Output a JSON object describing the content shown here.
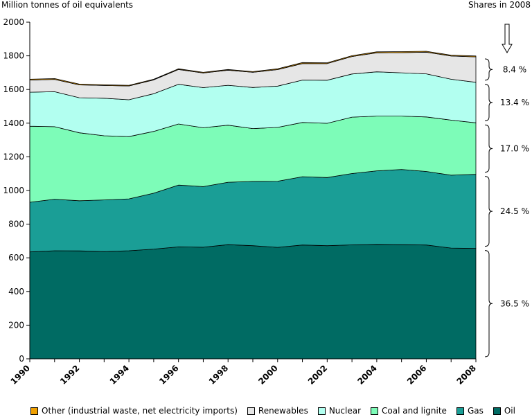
{
  "chart_data": {
    "type": "area",
    "stacked": true,
    "ylabel": "Million tonnes of oil equivalents",
    "right_title": "Shares in 2008",
    "ylim": [
      0,
      2000
    ],
    "yticks": [
      0,
      200,
      400,
      600,
      800,
      1000,
      1200,
      1400,
      1600,
      1800,
      2000
    ],
    "x": [
      1990,
      1991,
      1992,
      1993,
      1994,
      1995,
      1996,
      1997,
      1998,
      1999,
      2000,
      2001,
      2002,
      2003,
      2004,
      2005,
      2006,
      2007,
      2008
    ],
    "xticks": [
      "1990",
      "1992",
      "1994",
      "1996",
      "1998",
      "2000",
      "2002",
      "2004",
      "2006",
      "2008"
    ],
    "series": [
      {
        "name": "Oil",
        "color": "#006b63",
        "values": [
          635,
          642,
          641,
          637,
          642,
          652,
          665,
          663,
          678,
          672,
          662,
          676,
          672,
          677,
          680,
          678,
          676,
          658,
          656
        ]
      },
      {
        "name": "Gas",
        "color": "#1a9e96",
        "values": [
          295,
          306,
          298,
          307,
          308,
          332,
          367,
          360,
          371,
          382,
          393,
          406,
          405,
          424,
          437,
          447,
          437,
          433,
          440
        ]
      },
      {
        "name": "Coal and lignite",
        "color": "#7dfcb8",
        "values": [
          452,
          431,
          404,
          381,
          370,
          367,
          363,
          350,
          339,
          314,
          320,
          322,
          322,
          335,
          325,
          317,
          324,
          327,
          306
        ]
      },
      {
        "name": "Nuclear",
        "color": "#b2fff0",
        "values": [
          202,
          208,
          208,
          223,
          219,
          224,
          236,
          238,
          237,
          244,
          245,
          252,
          256,
          256,
          263,
          257,
          256,
          243,
          241
        ]
      },
      {
        "name": "Renewables",
        "color": "#e6e6e6",
        "values": [
          72,
          73,
          76,
          76,
          82,
          82,
          88,
          87,
          90,
          90,
          98,
          98,
          99,
          104,
          113,
          120,
          129,
          138,
          151
        ]
      },
      {
        "name": "Other (industrial waste, net electricity imports)",
        "color": "#f0a000",
        "values": [
          5,
          5,
          5,
          4,
          4,
          4,
          4,
          4,
          4,
          4,
          5,
          6,
          5,
          5,
          6,
          6,
          5,
          5,
          5
        ]
      }
    ],
    "shares_2008": [
      "8.4 %",
      "13.4 %",
      "17.0 %",
      "24.5 %",
      "36.5 %"
    ],
    "legend_position": "bottom",
    "grid": false
  },
  "legend": [
    {
      "label": "Other (industrial waste, net electricity imports)",
      "color": "#f0a000"
    },
    {
      "label": "Renewables",
      "color": "#e6e6e6"
    },
    {
      "label": "Nuclear",
      "color": "#b2fff0"
    },
    {
      "label": "Coal and lignite",
      "color": "#7dfcb8"
    },
    {
      "label": "Gas",
      "color": "#1a9e96"
    },
    {
      "label": "Oil",
      "color": "#006b63"
    }
  ]
}
